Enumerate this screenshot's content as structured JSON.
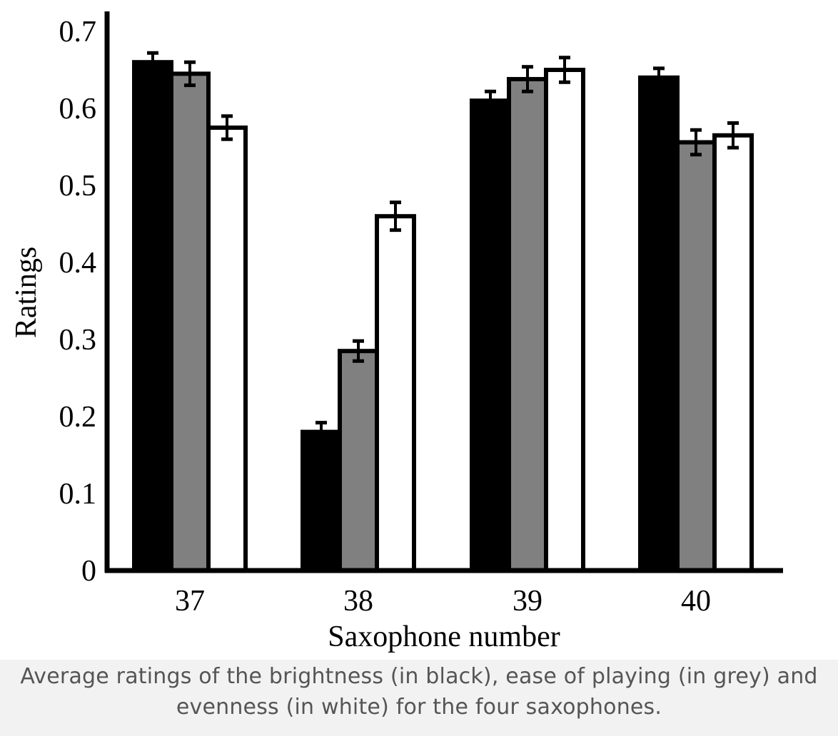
{
  "chart_data": {
    "type": "bar",
    "title": "",
    "xlabel": "Saxophone number",
    "ylabel": "Ratings",
    "categories": [
      "37",
      "38",
      "39",
      "40"
    ],
    "ylim": [
      0,
      0.7
    ],
    "yticks": [
      "0",
      "0.1",
      "0.2",
      "0.3",
      "0.4",
      "0.5",
      "0.6",
      "0.7"
    ],
    "grid": false,
    "legend": "none",
    "series": [
      {
        "key": "brightness",
        "color": "#000000",
        "values": [
          0.66,
          0.18,
          0.61,
          0.64
        ],
        "errors": [
          0.012,
          0.012,
          0.012,
          0.012
        ]
      },
      {
        "key": "ease-of-playing",
        "color": "#808080",
        "values": [
          0.645,
          0.285,
          0.638,
          0.556
        ],
        "errors": [
          0.015,
          0.013,
          0.016,
          0.016
        ]
      },
      {
        "key": "evenness",
        "color": "#ffffff",
        "values": [
          0.575,
          0.46,
          0.65,
          0.565
        ],
        "errors": [
          0.015,
          0.018,
          0.016,
          0.016
        ]
      }
    ]
  },
  "caption": {
    "line1": "Average ratings of the brightness (in black), ease of playing (in grey) and",
    "line2": "evenness (in white) for the four saxophones."
  }
}
